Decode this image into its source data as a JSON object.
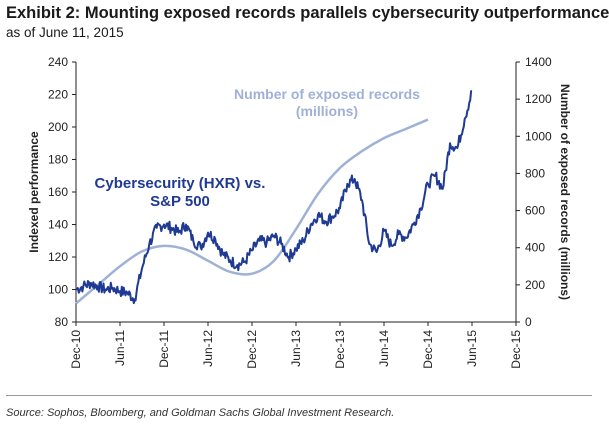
{
  "header": {
    "title": "Exhibit 2: Mounting exposed records parallels cybersecurity outperformance",
    "subtitle": "as of June 11, 2015"
  },
  "footer": {
    "source": "Source: Sophos, Bloomberg, and Goldman Sachs Global Investment Research."
  },
  "colors": {
    "hxr_line": "#1f3a93",
    "records_line": "#9fb2d6"
  },
  "chart_data": {
    "type": "line",
    "title": "",
    "xlabel": "",
    "ylabel": "Indexed performance",
    "y2label": "Number of exposed records (millions)",
    "ylim": [
      80,
      240
    ],
    "y2lim": [
      0,
      1400
    ],
    "yticks": [
      "240",
      "220",
      "200",
      "180",
      "160",
      "140",
      "120",
      "100",
      "80"
    ],
    "y2ticks": [
      "1400",
      "1200",
      "1000",
      "800",
      "600",
      "400",
      "200",
      "0"
    ],
    "xticks": [
      "Dec-10",
      "Jun-11",
      "Dec-11",
      "Jun-12",
      "Dec-12",
      "Jun-13",
      "Dec-13",
      "Jun-14",
      "Dec-14",
      "Jun-15",
      "Dec-15"
    ],
    "annotations": [
      {
        "text_lines": [
          "Cybersecurity (HXR) vs.",
          "S&P 500"
        ],
        "series": "hxr"
      },
      {
        "text_lines": [
          "Number of exposed records",
          "(millions)"
        ],
        "series": "records"
      }
    ],
    "grid": false,
    "series": [
      {
        "key": "hxr",
        "axis": "left",
        "x": [
          "2010-12",
          "2011-01",
          "2011-02",
          "2011-03",
          "2011-04",
          "2011-05",
          "2011-06",
          "2011-07",
          "2011-08",
          "2011-09",
          "2011-10",
          "2011-11",
          "2011-12",
          "2012-01",
          "2012-02",
          "2012-03",
          "2012-04",
          "2012-05",
          "2012-06",
          "2012-07",
          "2012-08",
          "2012-09",
          "2012-10",
          "2012-11",
          "2012-12",
          "2013-01",
          "2013-02",
          "2013-03",
          "2013-04",
          "2013-05",
          "2013-06",
          "2013-07",
          "2013-08",
          "2013-09",
          "2013-10",
          "2013-11",
          "2013-12",
          "2014-01",
          "2014-02",
          "2014-03",
          "2014-04",
          "2014-05",
          "2014-06",
          "2014-07",
          "2014-08",
          "2014-09",
          "2014-10",
          "2014-11",
          "2014-12",
          "2015-01",
          "2015-02",
          "2015-03",
          "2015-04",
          "2015-05",
          "2015-06"
        ],
        "values": [
          100,
          102,
          104,
          102,
          100,
          101,
          99,
          98,
          94,
          113,
          128,
          138,
          140,
          138,
          135,
          140,
          130,
          126,
          135,
          131,
          122,
          118,
          115,
          117,
          124,
          130,
          129,
          133,
          128,
          120,
          125,
          130,
          140,
          146,
          142,
          145,
          150,
          165,
          168,
          155,
          128,
          123,
          136,
          127,
          134,
          132,
          140,
          150,
          165,
          170,
          162,
          190,
          187,
          205,
          222
        ]
      },
      {
        "key": "records",
        "axis": "right",
        "x": [
          "2010-12",
          "2011-03",
          "2011-06",
          "2011-09",
          "2011-12",
          "2012-03",
          "2012-06",
          "2012-09",
          "2012-12",
          "2013-03",
          "2013-06",
          "2013-09",
          "2013-12",
          "2014-03",
          "2014-06",
          "2014-09",
          "2014-12"
        ],
        "values": [
          100,
          200,
          300,
          380,
          410,
          390,
          330,
          270,
          260,
          330,
          500,
          690,
          830,
          920,
          990,
          1040,
          1090
        ]
      }
    ]
  }
}
